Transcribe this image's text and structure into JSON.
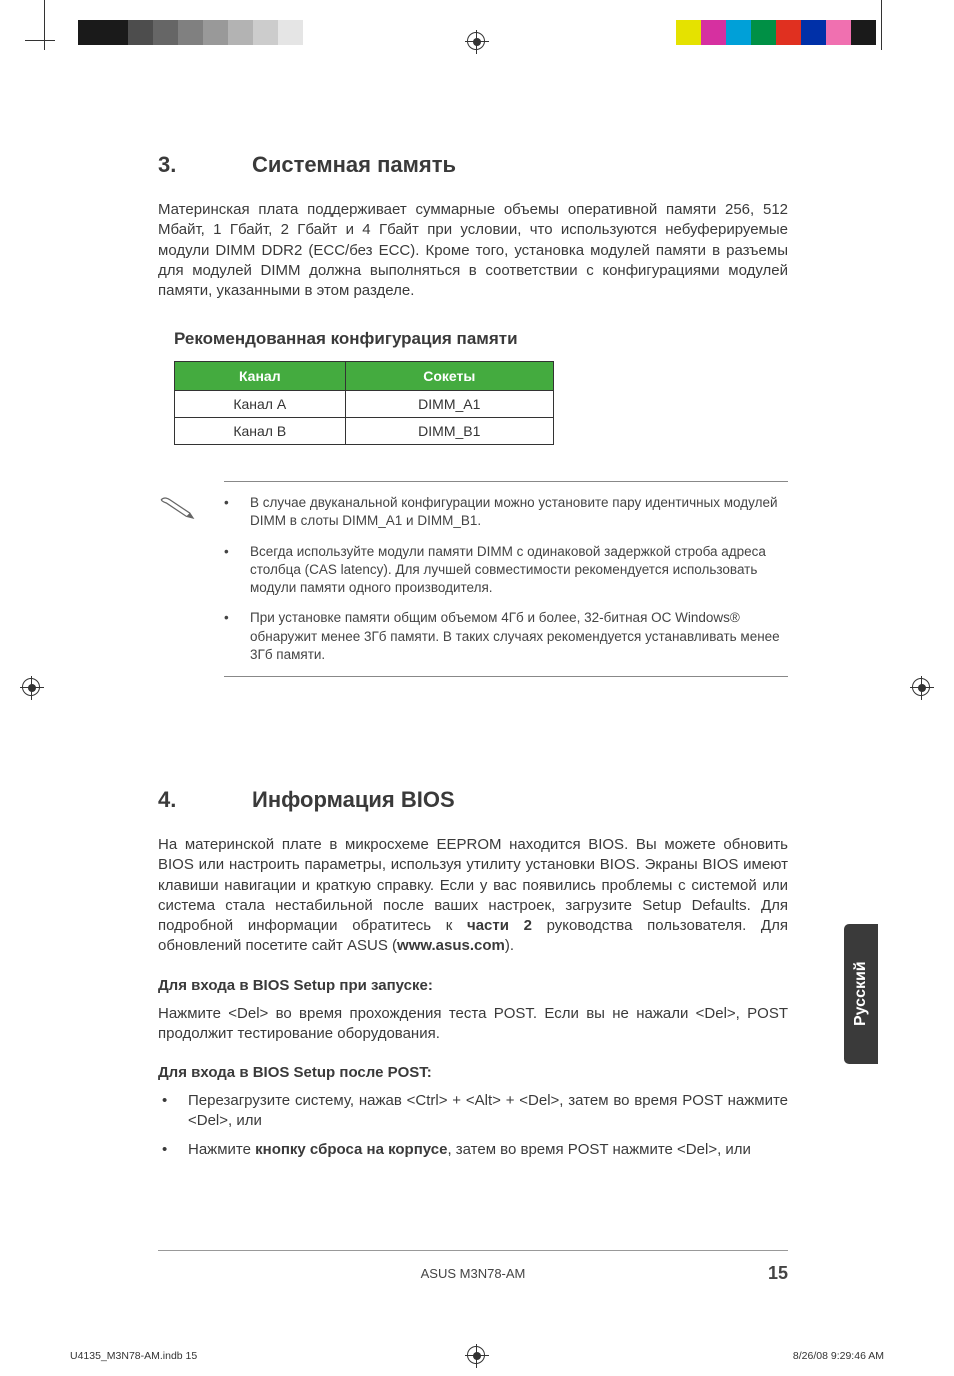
{
  "header": {
    "color_bars_left": [
      "#1a1a1a",
      "#1a1a1a",
      "#4d4d4d",
      "#666666",
      "#808080",
      "#999999",
      "#b3b3b3",
      "#cccccc",
      "#e5e5e5"
    ],
    "color_bars_right": [
      "#e5e200",
      "#d630a0",
      "#00a0d8",
      "#009045",
      "#e03020",
      "#0030a8",
      "#f070b0",
      "#1a1a1a"
    ]
  },
  "section3": {
    "number": "3.",
    "title": "Системная память",
    "intro": "Материнская плата поддерживает суммарные объемы оперативной памяти 256, 512 Мбайт, 1 Гбайт, 2 Гбайт и 4 Гбайт при условии, что используются небуферируемые модули DIMM DDR2 (ECC/без ECC). Кроме того, установка модулей памяти в разъемы для модулей DIMM должна выполняться в соответствии с конфигурациями модулей памяти, указанными в этом разделе.",
    "subheading": "Рекомендованная конфигурация памяти",
    "table": {
      "headers": [
        "Канал",
        "Сокеты"
      ],
      "rows": [
        [
          "Канал A",
          "DIMM_A1"
        ],
        [
          "Канал B",
          "DIMM_B1"
        ]
      ],
      "header_bg": "#44ab3f",
      "header_fg": "#ffffff",
      "border_color": "#333333"
    },
    "notes": [
      "В случае двуканальной конфигурации можно установите пару идентичных модулей DIMM в слоты DIMM_A1 и DIMM_B1.",
      "Всегда используйте модули памяти DIMM с одинаковой задержкой строба адреса столбца (CAS latency). Для лучшей совместимости рекомендуется использовать модули памяти одного производителя.",
      "При установке памяти общим объемом 4Гб и более, 32-битная ОС  Windows® обнаружит менее 3Гб памяти. В таких случаях рекомендуется устанавливать менее 3Гб памяти."
    ]
  },
  "section4": {
    "number": "4.",
    "title": "Информация BIOS",
    "intro_pre": "На материнской плате в микросхеме EEPROM находится BIOS. Вы можете обновить BIOS или настроить параметры, используя утилиту установки  BIOS. Экраны BIOS имеют клавиши навигации и краткую справку. Если у вас появились проблемы с системой или система стала нестабильной после ваших настроек, загрузите Setup Defaults. Для подробной информации обратитесь к ",
    "intro_bold1": "части 2",
    "intro_mid": " руководства пользователя. Для обновлений посетите сайт ASUS (",
    "intro_bold2": "www.asus.com",
    "intro_post": ").",
    "sub1": "Для входа в BIOS Setup при запуске:",
    "sub1_text": "Нажмите <Del> во время прохождения теста POST. Если вы не нажали <Del>, POST продолжит тестирование оборудования.",
    "sub2": "Для входа в BIOS Setup после POST:",
    "bullets": [
      {
        "pre": "Перезагрузите систему, нажав <Ctrl> + <Alt> + <Del>, затем во время POST нажмите <Del>, или",
        "bold": ""
      },
      {
        "pre": "Нажмите ",
        "bold": "кнопку сброса на корпусе",
        "post": ", затем во время POST нажмите <Del>, или"
      }
    ]
  },
  "lang_tab": "Русский",
  "footer": {
    "model": "ASUS M3N78-AM",
    "page": "15"
  },
  "print_meta": {
    "file": "U4135_M3N78-AM.indb   15",
    "timestamp": "8/26/08   9:29:46 AM"
  }
}
